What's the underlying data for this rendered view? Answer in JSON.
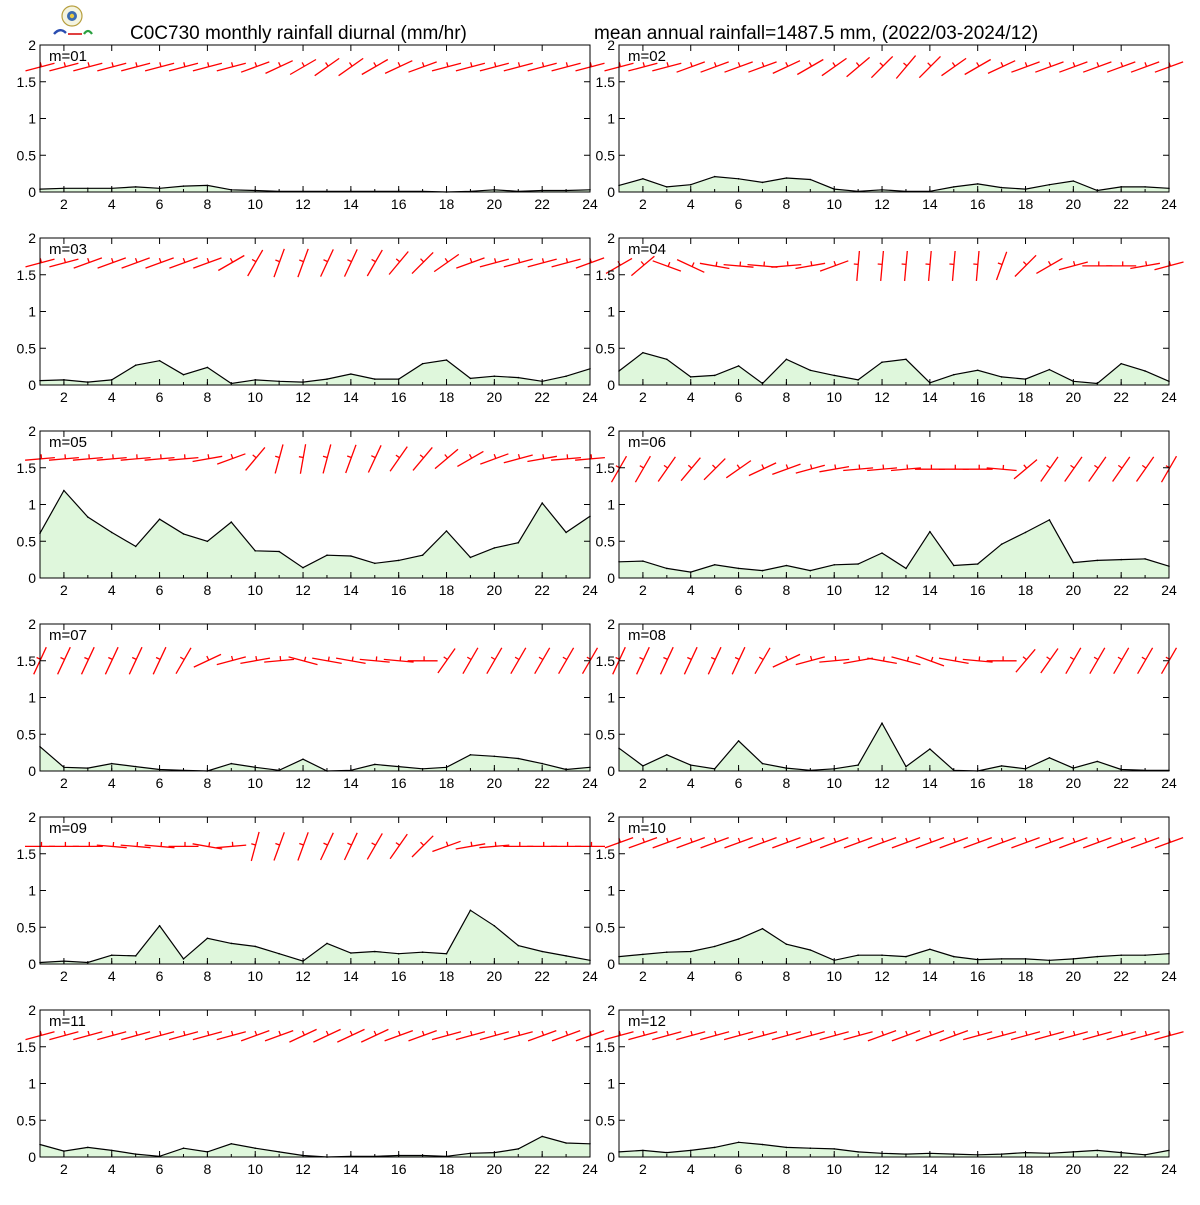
{
  "header": {
    "title_left": "C0C730 monthly rainfall diurnal (mm/hr)",
    "title_right": "mean annual rainfall=1487.5 mm, (2022/03-2024/12)"
  },
  "colors": {
    "rain_fill": "#dff7dc",
    "rain_line": "#000000",
    "wind_barb": "#ff0000",
    "axis": "#000000"
  },
  "chart_data": {
    "type": "area",
    "x": [
      1,
      2,
      3,
      4,
      5,
      6,
      7,
      8,
      9,
      10,
      11,
      12,
      13,
      14,
      15,
      16,
      17,
      18,
      19,
      20,
      21,
      22,
      23,
      24
    ],
    "xlim": [
      1,
      24
    ],
    "ylim": [
      0,
      2
    ],
    "xticks": [
      2,
      4,
      6,
      8,
      10,
      12,
      14,
      16,
      18,
      20,
      22,
      24
    ],
    "yticks": [
      0,
      0.5,
      1,
      1.5,
      2
    ],
    "ytick_labels": [
      "0",
      "0.5",
      "1",
      "1.5",
      "2"
    ],
    "grid": false,
    "overlay": "wind barbs (direction angle in degrees, clockwise from the +x axis) drawn along the top of each panel",
    "panels": [
      {
        "label": "m=01",
        "values": [
          0.04,
          0.05,
          0.05,
          0.05,
          0.07,
          0.05,
          0.08,
          0.09,
          0.03,
          0.02,
          0.01,
          0.01,
          0.01,
          0.01,
          0.01,
          0.01,
          0.01,
          0.0,
          0.01,
          0.03,
          0.01,
          0.02,
          0.02,
          0.03
        ],
        "wind": [
          -15,
          -15,
          -15,
          -15,
          -15,
          -15,
          -15,
          -15,
          -15,
          -20,
          -25,
          -30,
          -35,
          -35,
          -30,
          -25,
          -20,
          -15,
          -15,
          -15,
          -15,
          -15,
          -15,
          -15
        ],
        "wind_y": 1.7
      },
      {
        "label": "m=02",
        "values": [
          0.09,
          0.18,
          0.07,
          0.1,
          0.21,
          0.18,
          0.13,
          0.19,
          0.17,
          0.04,
          0.01,
          0.03,
          0.01,
          0.01,
          0.07,
          0.11,
          0.06,
          0.04,
          0.1,
          0.15,
          0.02,
          0.07,
          0.07,
          0.05
        ],
        "wind": [
          -15,
          -15,
          -15,
          -20,
          -20,
          -20,
          -20,
          -25,
          -30,
          -35,
          -40,
          -45,
          -50,
          -45,
          -35,
          -30,
          -25,
          -20,
          -20,
          -20,
          -20,
          -20,
          -20,
          -20
        ],
        "wind_y": 1.7
      },
      {
        "label": "m=03",
        "values": [
          0.06,
          0.07,
          0.04,
          0.07,
          0.27,
          0.33,
          0.14,
          0.24,
          0.02,
          0.07,
          0.05,
          0.04,
          0.08,
          0.15,
          0.08,
          0.08,
          0.29,
          0.34,
          0.09,
          0.12,
          0.1,
          0.05,
          0.12,
          0.22
        ],
        "wind": [
          -15,
          -15,
          -20,
          -20,
          -20,
          -20,
          -20,
          -20,
          -30,
          -60,
          -70,
          -70,
          -65,
          -65,
          -60,
          -50,
          -45,
          -35,
          -20,
          -15,
          -15,
          -15,
          -15,
          -20
        ],
        "wind_y": 1.66
      },
      {
        "label": "m=04",
        "values": [
          0.19,
          0.44,
          0.35,
          0.11,
          0.13,
          0.26,
          0.02,
          0.35,
          0.2,
          0.13,
          0.07,
          0.31,
          0.35,
          0.03,
          0.14,
          0.2,
          0.11,
          0.08,
          0.21,
          0.05,
          0.02,
          0.29,
          0.19,
          0.05
        ],
        "wind": [
          -30,
          -40,
          20,
          25,
          10,
          5,
          5,
          -5,
          -10,
          -20,
          -85,
          -85,
          -85,
          -85,
          -85,
          -85,
          -70,
          -45,
          -30,
          -15,
          0,
          0,
          -10,
          -15
        ],
        "wind_y": 1.62
      },
      {
        "label": "m=05",
        "values": [
          0.61,
          1.19,
          0.83,
          0.62,
          0.43,
          0.8,
          0.6,
          0.5,
          0.76,
          0.37,
          0.36,
          0.14,
          0.31,
          0.3,
          0.2,
          0.24,
          0.31,
          0.64,
          0.28,
          0.41,
          0.48,
          1.02,
          0.62,
          0.84
        ],
        "wind": [
          -5,
          -5,
          -5,
          -5,
          -5,
          -5,
          -5,
          -10,
          -20,
          -50,
          -75,
          -80,
          -75,
          -70,
          -65,
          -55,
          -50,
          -40,
          -30,
          -20,
          -15,
          -10,
          -5,
          -5
        ],
        "wind_y": 1.62
      },
      {
        "label": "m=06",
        "values": [
          0.22,
          0.23,
          0.13,
          0.08,
          0.18,
          0.13,
          0.1,
          0.17,
          0.1,
          0.18,
          0.19,
          0.34,
          0.13,
          0.63,
          0.17,
          0.19,
          0.46,
          0.62,
          0.79,
          0.21,
          0.24,
          0.25,
          0.26,
          0.16
        ],
        "wind": [
          -60,
          -60,
          -55,
          -50,
          -45,
          -35,
          -25,
          -20,
          -15,
          -10,
          -5,
          -5,
          -5,
          0,
          0,
          0,
          5,
          -40,
          -55,
          -55,
          -55,
          -55,
          -55,
          -60
        ],
        "wind_y": 1.48
      },
      {
        "label": "m=07",
        "values": [
          0.33,
          0.05,
          0.04,
          0.1,
          0.06,
          0.02,
          0.01,
          0.0,
          0.1,
          0.05,
          0.01,
          0.16,
          0.0,
          0.01,
          0.09,
          0.06,
          0.03,
          0.05,
          0.22,
          0.2,
          0.17,
          0.1,
          0.02,
          0.05
        ],
        "wind": [
          -65,
          -65,
          -65,
          -65,
          -65,
          -65,
          -60,
          -25,
          -15,
          -10,
          -5,
          15,
          10,
          10,
          5,
          5,
          0,
          -55,
          -60,
          -60,
          -60,
          -60,
          -60,
          -60
        ],
        "wind_y": 1.5
      },
      {
        "label": "m=08",
        "values": [
          0.31,
          0.07,
          0.22,
          0.08,
          0.03,
          0.41,
          0.1,
          0.04,
          0.01,
          0.03,
          0.08,
          0.65,
          0.06,
          0.3,
          0.01,
          0.0,
          0.07,
          0.03,
          0.18,
          0.04,
          0.13,
          0.02,
          0.01,
          0.01
        ],
        "wind": [
          -65,
          -65,
          -65,
          -65,
          -65,
          -65,
          -60,
          -25,
          -15,
          -5,
          -10,
          10,
          15,
          20,
          10,
          5,
          0,
          -50,
          -55,
          -60,
          -60,
          -60,
          -60,
          -60
        ],
        "wind_y": 1.5
      },
      {
        "label": "m=09",
        "values": [
          0.02,
          0.04,
          0.02,
          0.12,
          0.11,
          0.52,
          0.07,
          0.35,
          0.28,
          0.24,
          0.14,
          0.04,
          0.28,
          0.15,
          0.17,
          0.14,
          0.16,
          0.14,
          0.73,
          0.52,
          0.25,
          0.17,
          0.11,
          0.05
        ],
        "wind": [
          0,
          0,
          0,
          5,
          5,
          5,
          0,
          10,
          -5,
          -75,
          -70,
          -70,
          -65,
          -65,
          -60,
          -55,
          -45,
          -20,
          -10,
          -5,
          0,
          0,
          0,
          0
        ],
        "wind_y": 1.6
      },
      {
        "label": "m=10",
        "values": [
          0.1,
          0.13,
          0.16,
          0.17,
          0.24,
          0.34,
          0.48,
          0.27,
          0.19,
          0.05,
          0.12,
          0.12,
          0.1,
          0.2,
          0.1,
          0.06,
          0.07,
          0.07,
          0.05,
          0.07,
          0.1,
          0.12,
          0.12,
          0.14
        ],
        "wind": [
          -20,
          -20,
          -20,
          -20,
          -20,
          -20,
          -20,
          -20,
          -20,
          -20,
          -20,
          -20,
          -20,
          -20,
          -20,
          -20,
          -20,
          -20,
          -20,
          -20,
          -20,
          -20,
          -20,
          -20
        ],
        "wind_y": 1.65
      },
      {
        "label": "m=11",
        "values": [
          0.17,
          0.08,
          0.13,
          0.09,
          0.04,
          0.01,
          0.12,
          0.07,
          0.18,
          0.12,
          0.07,
          0.02,
          0.0,
          0.01,
          0.01,
          0.02,
          0.02,
          0.01,
          0.05,
          0.06,
          0.11,
          0.28,
          0.19,
          0.18
        ],
        "wind": [
          -15,
          -15,
          -15,
          -15,
          -15,
          -15,
          -15,
          -15,
          -15,
          -20,
          -20,
          -25,
          -25,
          -25,
          -25,
          -20,
          -20,
          -15,
          -15,
          -15,
          -15,
          -20,
          -20,
          -20
        ],
        "wind_y": 1.65
      },
      {
        "label": "m=12",
        "values": [
          0.07,
          0.09,
          0.06,
          0.09,
          0.13,
          0.2,
          0.17,
          0.13,
          0.12,
          0.11,
          0.07,
          0.05,
          0.04,
          0.05,
          0.04,
          0.03,
          0.04,
          0.06,
          0.05,
          0.07,
          0.09,
          0.06,
          0.03,
          0.09
        ],
        "wind": [
          -15,
          -15,
          -15,
          -15,
          -15,
          -15,
          -15,
          -15,
          -15,
          -15,
          -15,
          -20,
          -20,
          -20,
          -20,
          -15,
          -15,
          -15,
          -15,
          -15,
          -15,
          -15,
          -15,
          -15
        ],
        "wind_y": 1.65
      }
    ]
  }
}
